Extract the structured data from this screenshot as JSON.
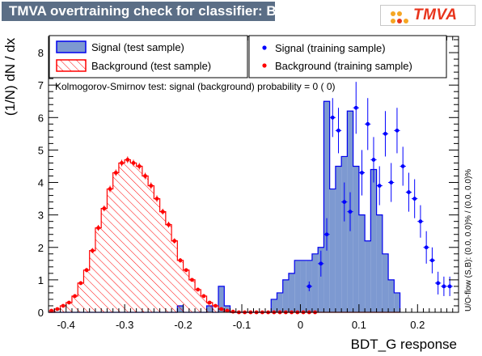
{
  "title": "TMVA overtraining check for classifier: BDT_G",
  "logo_text": "TMVA",
  "ks_text": "Kolmogorov-Smirnov test: signal (background) probability =     0 (     0)",
  "side_text": "U/O-flow (S,B): (0.0, 0.0)% / (0.0, 0.0)%",
  "chart_data": {
    "type": "bar",
    "xlabel": "BDT_G response",
    "ylabel": "(1/N) dN / dx",
    "xlim": [
      -0.43,
      0.27
    ],
    "ylim": [
      0,
      8.5
    ],
    "x_ticks": [
      -0.4,
      -0.3,
      -0.2,
      -0.1,
      0,
      0.1,
      0.2
    ],
    "x_tick_labels": [
      "-0.4",
      "-0.3",
      "-0.2",
      "-0.1",
      "0",
      "0.1",
      "0.2"
    ],
    "y_ticks": [
      0,
      1,
      2,
      3,
      4,
      5,
      6,
      7,
      8
    ],
    "y_tick_labels": [
      "0",
      "1",
      "2",
      "3",
      "4",
      "5",
      "6",
      "7",
      "8"
    ],
    "bin_edges_start": -0.43,
    "bin_width": 0.01,
    "legend_placement": "top",
    "colors": {
      "signal_fill": "#7d99d1",
      "signal_line": "#0000ee",
      "background": "#ff0000",
      "signal_points": "#0000ff",
      "background_points": "#ff0000"
    },
    "series": [
      {
        "name": "Signal (test sample)",
        "style": "filled-histogram",
        "values": [
          0,
          0,
          0,
          0,
          0,
          0,
          0,
          0,
          0,
          0,
          0,
          0,
          0,
          0,
          0,
          0,
          0,
          0,
          0,
          0,
          0,
          0,
          0.2,
          0,
          0,
          0,
          0,
          0.2,
          0,
          0.8,
          0.2,
          0,
          0,
          0,
          0,
          0,
          0,
          0,
          0.4,
          0.6,
          1.0,
          1.2,
          1.6,
          1.6,
          1.6,
          1.8,
          2.0,
          6.5,
          3.8,
          4.5,
          4.8,
          6.2,
          4.5,
          3.0,
          2.2,
          4.4,
          3.0,
          1.8,
          1.0,
          0.6
        ]
      },
      {
        "name": "Background (test sample)",
        "style": "hatched-histogram",
        "values": [
          0,
          0.1,
          0.2,
          0.3,
          0.5,
          0.9,
          1.3,
          1.9,
          2.6,
          3.2,
          3.8,
          4.3,
          4.6,
          4.7,
          4.6,
          4.5,
          4.2,
          3.9,
          3.5,
          3.1,
          2.7,
          2.2,
          1.6,
          1.3,
          1.0,
          0.7,
          0.5,
          0.3,
          0.2,
          0.1,
          0.05,
          0,
          0,
          0,
          0,
          0,
          0,
          0,
          0,
          0,
          0,
          0,
          0,
          0,
          0,
          0,
          0,
          0,
          0,
          0,
          0,
          0,
          0,
          0,
          0,
          0,
          0,
          0,
          0,
          0
        ]
      },
      {
        "name": "Signal (training sample)",
        "style": "points",
        "x": [
          0.015,
          0.035,
          0.045,
          0.055,
          0.065,
          0.075,
          0.085,
          0.095,
          0.105,
          0.115,
          0.125,
          0.135,
          0.145,
          0.155,
          0.165,
          0.175,
          0.185,
          0.195,
          0.205,
          0.215,
          0.225,
          0.235,
          0.245,
          0.255
        ],
        "y": [
          0.8,
          1.5,
          2.4,
          6.0,
          5.6,
          3.4,
          3.1,
          6.3,
          4.3,
          5.8,
          4.7,
          3.9,
          5.5,
          4.0,
          5.6,
          4.5,
          3.7,
          3.5,
          2.8,
          2.0,
          1.6,
          0.9,
          0.8,
          0.8
        ],
        "err": [
          0.15,
          0.4,
          0.5,
          0.6,
          0.7,
          0.6,
          0.6,
          0.8,
          0.7,
          0.8,
          0.7,
          0.6,
          0.7,
          0.6,
          0.7,
          0.6,
          0.6,
          0.6,
          0.5,
          0.5,
          0.4,
          0.35,
          0.3,
          0.3
        ]
      },
      {
        "name": "Background (training sample)",
        "style": "points",
        "x": [
          -0.425,
          -0.415,
          -0.405,
          -0.395,
          -0.385,
          -0.375,
          -0.365,
          -0.355,
          -0.345,
          -0.335,
          -0.325,
          -0.315,
          -0.305,
          -0.295,
          -0.285,
          -0.275,
          -0.265,
          -0.255,
          -0.245,
          -0.235,
          -0.225,
          -0.215,
          -0.205,
          -0.195,
          -0.185,
          -0.175,
          -0.165,
          -0.155,
          -0.145,
          -0.135,
          -0.125,
          -0.115,
          -0.105,
          -0.095,
          -0.085,
          -0.075,
          -0.065,
          -0.055,
          -0.045,
          -0.035,
          -0.025,
          -0.015,
          -0.005,
          0.005,
          0.015,
          0.025
        ],
        "y": [
          0.05,
          0.1,
          0.2,
          0.3,
          0.5,
          0.9,
          1.3,
          1.9,
          2.6,
          3.2,
          3.8,
          4.3,
          4.6,
          4.7,
          4.6,
          4.5,
          4.2,
          3.9,
          3.5,
          3.1,
          2.7,
          2.2,
          1.6,
          1.3,
          1.0,
          0.7,
          0.5,
          0.3,
          0.2,
          0.1,
          0.05,
          0.02,
          0,
          0,
          0,
          0,
          0,
          0,
          0,
          0,
          0,
          0,
          0,
          0,
          0,
          0
        ],
        "err": [
          0.02,
          0.03,
          0.04,
          0.05,
          0.05,
          0.06,
          0.07,
          0.08,
          0.09,
          0.09,
          0.1,
          0.1,
          0.1,
          0.1,
          0.1,
          0.1,
          0.1,
          0.1,
          0.1,
          0.09,
          0.09,
          0.08,
          0.07,
          0.06,
          0.05,
          0.05,
          0.04,
          0.03,
          0.03,
          0.02,
          0.02,
          0.01,
          0,
          0,
          0,
          0,
          0,
          0,
          0,
          0,
          0,
          0,
          0,
          0,
          0,
          0
        ]
      }
    ]
  }
}
